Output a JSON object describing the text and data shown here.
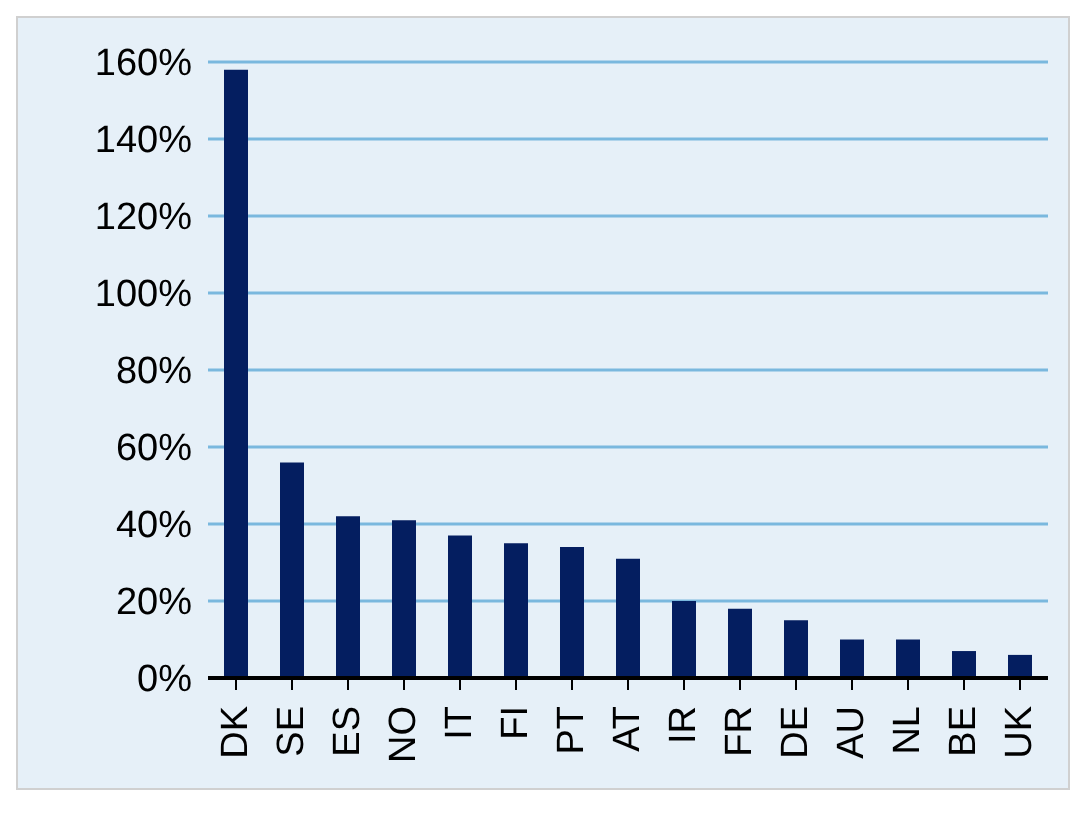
{
  "chart_data": {
    "type": "bar",
    "categories": [
      "DK",
      "SE",
      "ES",
      "NO",
      "IT",
      "FI",
      "PT",
      "AT",
      "IR",
      "FR",
      "DE",
      "AU",
      "NL",
      "BE",
      "UK"
    ],
    "values": [
      158,
      56,
      42,
      41,
      37,
      35,
      34,
      31,
      20,
      18,
      15,
      10,
      10,
      7,
      6
    ],
    "color": "#041e60",
    "ylim": [
      0,
      160
    ],
    "yticks": [
      {
        "value": 0,
        "label": "0%"
      },
      {
        "value": 20,
        "label": "20%"
      },
      {
        "value": 40,
        "label": "40%"
      },
      {
        "value": 60,
        "label": "60%"
      },
      {
        "value": 80,
        "label": "80%"
      },
      {
        "value": 100,
        "label": "100%"
      },
      {
        "value": 120,
        "label": "120%"
      },
      {
        "value": 140,
        "label": "140%"
      },
      {
        "value": 160,
        "label": "160%"
      }
    ],
    "grid": "y"
  }
}
